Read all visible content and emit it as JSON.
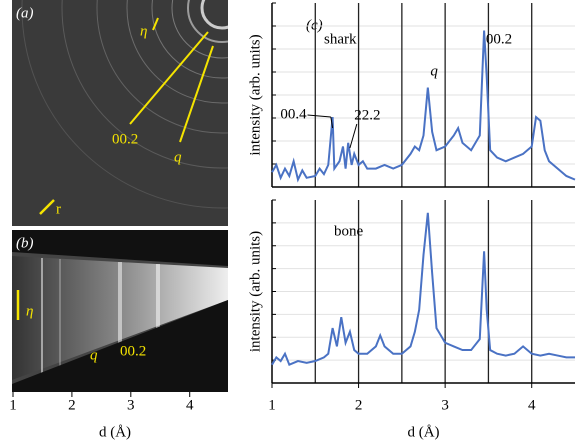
{
  "image_panels": {
    "a": {
      "label": "(a)",
      "eta": "η",
      "ring_002": "00.2",
      "ring_q": "q",
      "r": "r"
    },
    "b": {
      "label": "(b)",
      "eta": "η",
      "q": "q",
      "ring_002": "00.2"
    },
    "axis": {
      "xlim": [
        1,
        4.65
      ],
      "xticks": [
        1,
        2,
        3,
        4
      ],
      "xlabel": "d (Å)"
    }
  },
  "panel_label": "(c)",
  "chart_data": [
    {
      "type": "line",
      "title": "shark",
      "ylabel": "intensity (arb. units)",
      "xlim": [
        1,
        4.5
      ],
      "ylim": [
        0,
        100
      ],
      "xgrid": [
        1.5,
        2,
        2.5,
        3,
        3.5,
        4
      ],
      "annotations": [
        "q",
        "00.4",
        "22.2",
        "00.2"
      ],
      "x": [
        1.0,
        1.05,
        1.1,
        1.15,
        1.2,
        1.25,
        1.3,
        1.35,
        1.4,
        1.5,
        1.55,
        1.6,
        1.65,
        1.7,
        1.72,
        1.78,
        1.82,
        1.85,
        1.88,
        1.92,
        1.95,
        2.0,
        2.05,
        2.1,
        2.2,
        2.3,
        2.4,
        2.5,
        2.6,
        2.65,
        2.7,
        2.75,
        2.8,
        2.85,
        2.9,
        3.0,
        3.1,
        3.15,
        3.2,
        3.3,
        3.4,
        3.45,
        3.48,
        3.52,
        3.6,
        3.7,
        3.8,
        3.9,
        4.0,
        4.05,
        4.1,
        4.15,
        4.2,
        4.3,
        4.4,
        4.5
      ],
      "series": [
        {
          "name": "shark",
          "color": "#4a72c4",
          "values": [
            8,
            12,
            5,
            10,
            6,
            14,
            4,
            9,
            5,
            6,
            10,
            7,
            12,
            38,
            10,
            14,
            22,
            10,
            24,
            12,
            18,
            12,
            14,
            10,
            10,
            12,
            10,
            12,
            18,
            22,
            20,
            28,
            54,
            30,
            20,
            22,
            28,
            32,
            24,
            20,
            28,
            85,
            60,
            20,
            16,
            14,
            16,
            18,
            22,
            38,
            36,
            20,
            14,
            10,
            6,
            4
          ]
        }
      ]
    },
    {
      "type": "line",
      "title": "bone",
      "ylabel": "intensity (arb. units)",
      "xlabel": "d (Å)",
      "xlim": [
        1,
        4.5
      ],
      "ylim": [
        0,
        100
      ],
      "xticks": [
        1,
        2,
        3,
        4
      ],
      "xgrid": [
        1.5,
        2,
        2.5,
        3,
        3.5,
        4
      ],
      "x": [
        1.0,
        1.05,
        1.1,
        1.15,
        1.2,
        1.3,
        1.4,
        1.5,
        1.6,
        1.65,
        1.7,
        1.75,
        1.8,
        1.85,
        1.9,
        1.95,
        2.0,
        2.1,
        2.2,
        2.25,
        2.3,
        2.4,
        2.5,
        2.6,
        2.65,
        2.7,
        2.75,
        2.8,
        2.85,
        2.9,
        3.0,
        3.1,
        3.2,
        3.3,
        3.4,
        3.45,
        3.48,
        3.52,
        3.6,
        3.7,
        3.8,
        3.9,
        4.0,
        4.1,
        4.2,
        4.3,
        4.4,
        4.5
      ],
      "series": [
        {
          "name": "bone",
          "color": "#4a72c4",
          "values": [
            10,
            14,
            12,
            16,
            10,
            12,
            11,
            12,
            14,
            16,
            30,
            20,
            36,
            22,
            28,
            18,
            16,
            16,
            20,
            26,
            20,
            16,
            16,
            20,
            28,
            40,
            70,
            93,
            60,
            30,
            22,
            20,
            18,
            18,
            24,
            72,
            40,
            18,
            16,
            15,
            16,
            20,
            16,
            15,
            16,
            15,
            14,
            14
          ]
        }
      ]
    }
  ]
}
